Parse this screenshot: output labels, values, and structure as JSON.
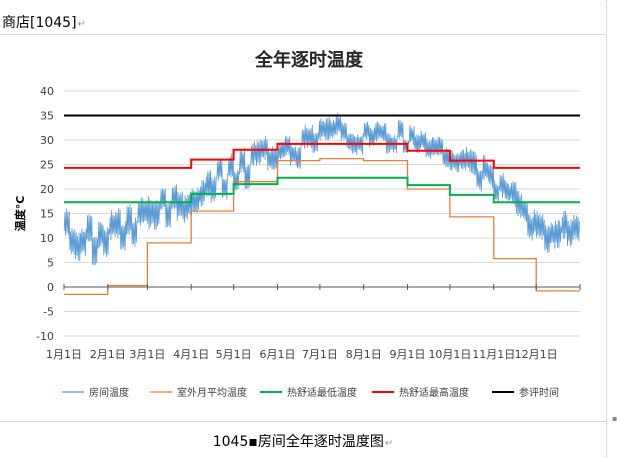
{
  "document": {
    "heading": "商店[1045]",
    "paragraph_mark": "↵",
    "caption": "1045▪房间全年逐时温度图",
    "caption_mark": "↵"
  },
  "chart_data": {
    "type": "line",
    "title": "全年逐时温度",
    "ylabel": "温度°C",
    "xlabel": "",
    "ylim": [
      -10,
      40
    ],
    "yticks": [
      -10,
      -5,
      0,
      5,
      10,
      15,
      20,
      25,
      30,
      35,
      40
    ],
    "grid": true,
    "legend_position": "bottom",
    "x_domain_days": [
      0,
      365
    ],
    "categories": [
      "1月1日",
      "2月1日",
      "3月1日",
      "4月1日",
      "5月1日",
      "6月1日",
      "7月1日",
      "8月1日",
      "9月1日",
      "10月1日",
      "11月1日",
      "12月1日"
    ],
    "month_start_days": [
      0,
      31,
      59,
      90,
      120,
      151,
      181,
      212,
      243,
      273,
      304,
      334,
      365
    ],
    "series": [
      {
        "name": "房间温度",
        "kind": "hourly",
        "color": "#5b9bd5",
        "daily_mean": [
          [
            0,
            11.5
          ],
          [
            20,
            9.5
          ],
          [
            35,
            10.5
          ],
          [
            50,
            12.5
          ],
          [
            65,
            15
          ],
          [
            80,
            17
          ],
          [
            90,
            19
          ],
          [
            100,
            20.5
          ],
          [
            115,
            22.5
          ],
          [
            130,
            24.5
          ],
          [
            150,
            27
          ],
          [
            170,
            29
          ],
          [
            185,
            30.5
          ],
          [
            200,
            31
          ],
          [
            215,
            30
          ],
          [
            230,
            30.5
          ],
          [
            245,
            29.5
          ],
          [
            260,
            28
          ],
          [
            275,
            26.5
          ],
          [
            290,
            24.5
          ],
          [
            305,
            21
          ],
          [
            320,
            17
          ],
          [
            335,
            13
          ],
          [
            350,
            11
          ],
          [
            365,
            11.5
          ]
        ],
        "daily_swing": [
          [
            0,
            4.5
          ],
          [
            60,
            5
          ],
          [
            120,
            4
          ],
          [
            150,
            4
          ],
          [
            200,
            3.5
          ],
          [
            250,
            3
          ],
          [
            300,
            4
          ],
          [
            365,
            4.5
          ]
        ]
      },
      {
        "name": "室外月平均温度",
        "kind": "step",
        "color": "#ed7d31",
        "values": [
          -1.5,
          0.3,
          9,
          15.5,
          21.5,
          25.8,
          26.2,
          25.8,
          20,
          14.3,
          5.8,
          -0.8
        ]
      },
      {
        "name": "热舒适最低温度",
        "kind": "step",
        "color": "#00b050",
        "values": [
          17.3,
          17.3,
          17.3,
          19,
          21,
          22.3,
          22.3,
          22.3,
          20.8,
          18.8,
          17.3,
          17.3
        ]
      },
      {
        "name": "热舒适最高温度",
        "kind": "step",
        "color": "#ff0000",
        "values": [
          24.3,
          24.3,
          24.3,
          26,
          28,
          29.2,
          29.2,
          29.2,
          27.8,
          25.8,
          24.3,
          24.3
        ]
      },
      {
        "name": "参评时间",
        "kind": "constant",
        "color": "#000000",
        "value": 35
      }
    ]
  }
}
